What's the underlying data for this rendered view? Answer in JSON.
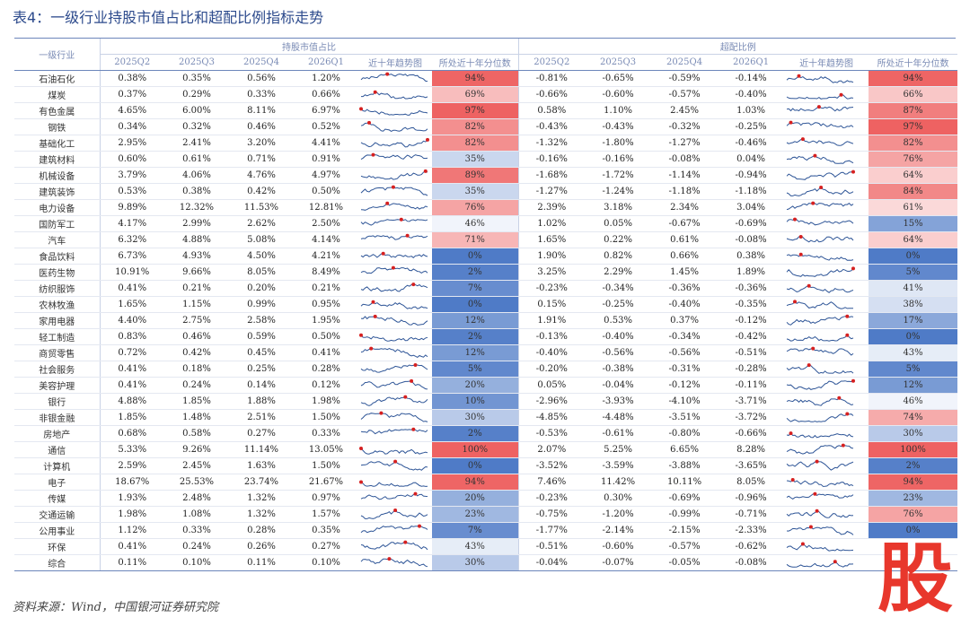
{
  "title": "表4：一级行业持股市值占比和超配比例指标走势",
  "headers": {
    "industry": "一级行业",
    "group1": "持股市值占比",
    "group2": "超配比例",
    "quarters": [
      "2025Q2",
      "2025Q3",
      "2025Q4",
      "2026Q1"
    ],
    "trend": "近十年趋势图",
    "percentile": "所处近十年分位数"
  },
  "source": "资料来源：Wind，中国银河证券研究院",
  "logo_char": "股",
  "colors": {
    "accent": "#2c4a8c",
    "logo": "#e8372c"
  },
  "rows": [
    {
      "name": "石油石化",
      "share": [
        "0.38%",
        "0.35%",
        "0.56%",
        "1.20%"
      ],
      "sp": "94%",
      "over": [
        "-0.81%",
        "-0.65%",
        "-0.59%",
        "-0.14%"
      ],
      "op": "94%"
    },
    {
      "name": "煤炭",
      "share": [
        "0.37%",
        "0.29%",
        "0.33%",
        "0.66%"
      ],
      "sp": "69%",
      "over": [
        "-0.66%",
        "-0.60%",
        "-0.57%",
        "-0.40%"
      ],
      "op": "66%"
    },
    {
      "name": "有色金属",
      "share": [
        "4.65%",
        "6.00%",
        "8.11%",
        "6.97%"
      ],
      "sp": "97%",
      "over": [
        "0.58%",
        "1.10%",
        "2.45%",
        "1.03%"
      ],
      "op": "87%"
    },
    {
      "name": "钢铁",
      "share": [
        "0.34%",
        "0.32%",
        "0.46%",
        "0.52%"
      ],
      "sp": "82%",
      "over": [
        "-0.43%",
        "-0.43%",
        "-0.32%",
        "-0.25%"
      ],
      "op": "97%"
    },
    {
      "name": "基础化工",
      "share": [
        "2.95%",
        "2.41%",
        "3.20%",
        "4.41%"
      ],
      "sp": "82%",
      "over": [
        "-1.32%",
        "-1.80%",
        "-1.27%",
        "-0.46%"
      ],
      "op": "82%"
    },
    {
      "name": "建筑材料",
      "share": [
        "0.60%",
        "0.61%",
        "0.71%",
        "0.91%"
      ],
      "sp": "35%",
      "over": [
        "-0.16%",
        "-0.16%",
        "-0.08%",
        "0.04%"
      ],
      "op": "76%"
    },
    {
      "name": "机械设备",
      "share": [
        "3.79%",
        "4.06%",
        "4.76%",
        "4.97%"
      ],
      "sp": "89%",
      "over": [
        "-1.68%",
        "-1.72%",
        "-1.14%",
        "-0.94%"
      ],
      "op": "64%"
    },
    {
      "name": "建筑装饰",
      "share": [
        "0.53%",
        "0.38%",
        "0.42%",
        "0.50%"
      ],
      "sp": "35%",
      "over": [
        "-1.27%",
        "-1.24%",
        "-1.18%",
        "-1.18%"
      ],
      "op": "84%"
    },
    {
      "name": "电力设备",
      "share": [
        "9.89%",
        "12.32%",
        "11.53%",
        "12.81%"
      ],
      "sp": "76%",
      "over": [
        "2.39%",
        "3.18%",
        "2.34%",
        "3.04%"
      ],
      "op": "61%"
    },
    {
      "name": "国防军工",
      "share": [
        "4.17%",
        "2.99%",
        "2.62%",
        "2.50%"
      ],
      "sp": "46%",
      "over": [
        "1.02%",
        "0.05%",
        "-0.67%",
        "-0.69%"
      ],
      "op": "15%"
    },
    {
      "name": "汽车",
      "share": [
        "6.32%",
        "4.88%",
        "5.08%",
        "4.14%"
      ],
      "sp": "71%",
      "over": [
        "1.65%",
        "0.22%",
        "0.61%",
        "-0.08%"
      ],
      "op": "64%"
    },
    {
      "name": "食品饮料",
      "share": [
        "6.73%",
        "4.93%",
        "4.50%",
        "4.21%"
      ],
      "sp": "0%",
      "over": [
        "1.90%",
        "0.82%",
        "0.66%",
        "0.38%"
      ],
      "op": "0%"
    },
    {
      "name": "医药生物",
      "share": [
        "10.91%",
        "9.66%",
        "8.05%",
        "8.49%"
      ],
      "sp": "2%",
      "over": [
        "3.25%",
        "2.29%",
        "1.45%",
        "1.89%"
      ],
      "op": "5%"
    },
    {
      "name": "纺织服饰",
      "share": [
        "0.41%",
        "0.21%",
        "0.20%",
        "0.21%"
      ],
      "sp": "7%",
      "over": [
        "-0.23%",
        "-0.34%",
        "-0.36%",
        "-0.36%"
      ],
      "op": "41%"
    },
    {
      "name": "农林牧渔",
      "share": [
        "1.65%",
        "1.15%",
        "0.99%",
        "0.95%"
      ],
      "sp": "0%",
      "over": [
        "0.15%",
        "-0.25%",
        "-0.40%",
        "-0.35%"
      ],
      "op": "38%"
    },
    {
      "name": "家用电器",
      "share": [
        "4.40%",
        "2.75%",
        "2.58%",
        "1.95%"
      ],
      "sp": "12%",
      "over": [
        "1.91%",
        "0.53%",
        "0.37%",
        "-0.12%"
      ],
      "op": "17%"
    },
    {
      "name": "轻工制造",
      "share": [
        "0.83%",
        "0.46%",
        "0.59%",
        "0.50%"
      ],
      "sp": "2%",
      "over": [
        "-0.13%",
        "-0.40%",
        "-0.34%",
        "-0.42%"
      ],
      "op": "0%"
    },
    {
      "name": "商贸零售",
      "share": [
        "0.72%",
        "0.42%",
        "0.45%",
        "0.41%"
      ],
      "sp": "12%",
      "over": [
        "-0.40%",
        "-0.56%",
        "-0.56%",
        "-0.51%"
      ],
      "op": "43%"
    },
    {
      "name": "社会服务",
      "share": [
        "0.41%",
        "0.18%",
        "0.25%",
        "0.28%"
      ],
      "sp": "5%",
      "over": [
        "-0.20%",
        "-0.38%",
        "-0.31%",
        "-0.28%"
      ],
      "op": "5%"
    },
    {
      "name": "美容护理",
      "share": [
        "0.41%",
        "0.24%",
        "0.14%",
        "0.12%"
      ],
      "sp": "20%",
      "over": [
        "0.05%",
        "-0.04%",
        "-0.12%",
        "-0.11%"
      ],
      "op": "12%"
    },
    {
      "name": "银行",
      "share": [
        "4.88%",
        "1.85%",
        "1.88%",
        "1.98%"
      ],
      "sp": "10%",
      "over": [
        "-2.96%",
        "-3.93%",
        "-4.10%",
        "-3.71%"
      ],
      "op": "46%"
    },
    {
      "name": "非银金融",
      "share": [
        "1.85%",
        "1.48%",
        "2.51%",
        "1.50%"
      ],
      "sp": "30%",
      "over": [
        "-4.85%",
        "-4.48%",
        "-3.51%",
        "-3.72%"
      ],
      "op": "74%"
    },
    {
      "name": "房地产",
      "share": [
        "0.68%",
        "0.58%",
        "0.27%",
        "0.33%"
      ],
      "sp": "2%",
      "over": [
        "-0.53%",
        "-0.61%",
        "-0.80%",
        "-0.66%"
      ],
      "op": "30%"
    },
    {
      "name": "通信",
      "share": [
        "5.33%",
        "9.26%",
        "11.14%",
        "13.05%"
      ],
      "sp": "100%",
      "over": [
        "2.07%",
        "5.25%",
        "6.65%",
        "8.28%"
      ],
      "op": "100%"
    },
    {
      "name": "计算机",
      "share": [
        "2.59%",
        "2.45%",
        "1.63%",
        "1.50%"
      ],
      "sp": "0%",
      "over": [
        "-3.52%",
        "-3.59%",
        "-3.88%",
        "-3.65%"
      ],
      "op": "2%"
    },
    {
      "name": "电子",
      "share": [
        "18.67%",
        "25.53%",
        "23.74%",
        "21.67%"
      ],
      "sp": "94%",
      "over": [
        "7.46%",
        "11.42%",
        "10.11%",
        "8.05%"
      ],
      "op": "94%"
    },
    {
      "name": "传媒",
      "share": [
        "1.93%",
        "2.48%",
        "1.32%",
        "0.97%"
      ],
      "sp": "20%",
      "over": [
        "-0.23%",
        "0.30%",
        "-0.69%",
        "-0.96%"
      ],
      "op": "23%"
    },
    {
      "name": "交通运输",
      "share": [
        "1.98%",
        "1.08%",
        "1.32%",
        "1.57%"
      ],
      "sp": "23%",
      "over": [
        "-0.75%",
        "-1.20%",
        "-0.99%",
        "-0.71%"
      ],
      "op": "76%"
    },
    {
      "name": "公用事业",
      "share": [
        "1.12%",
        "0.33%",
        "0.28%",
        "0.35%"
      ],
      "sp": "7%",
      "over": [
        "-1.77%",
        "-2.14%",
        "-2.15%",
        "-2.33%"
      ],
      "op": "0%"
    },
    {
      "name": "环保",
      "share": [
        "0.41%",
        "0.24%",
        "0.26%",
        "0.27%"
      ],
      "sp": "43%",
      "over": [
        "-0.51%",
        "-0.60%",
        "-0.57%",
        "-0.62%"
      ],
      "op": ""
    },
    {
      "name": "综合",
      "share": [
        "0.11%",
        "0.10%",
        "0.11%",
        "0.10%"
      ],
      "sp": "30%",
      "over": [
        "-0.04%",
        "-0.07%",
        "-0.05%",
        "-0.08%"
      ],
      "op": ""
    }
  ]
}
